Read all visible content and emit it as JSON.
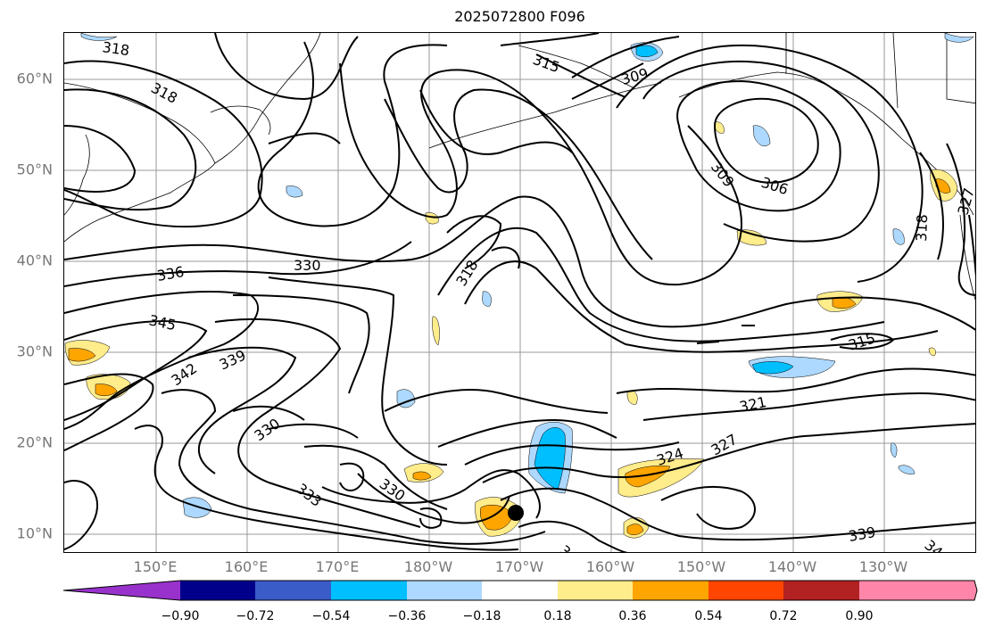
{
  "title": "2025072800 F096",
  "lat_labels": [
    "60°N",
    "50°N",
    "40°N",
    "30°N",
    "20°N",
    "10°N"
  ],
  "lon_labels": [
    "150°E",
    "160°E",
    "170°E",
    "180°W",
    "170°W",
    "160°W",
    "150°W",
    "140°W",
    "130°W"
  ],
  "contour_labels": [
    "318",
    "318",
    "315",
    "309",
    "309",
    "306",
    "318",
    "327",
    "336",
    "330",
    "318",
    "345",
    "342",
    "339",
    "315",
    "321",
    "330",
    "324",
    "327",
    "333",
    "330",
    "339",
    "3",
    "34"
  ],
  "colorbar": {
    "ticks": [
      "−0.90",
      "−0.72",
      "−0.54",
      "−0.36",
      "−0.18",
      "0.18",
      "0.36",
      "0.54",
      "0.72",
      "0.90"
    ],
    "colors": [
      "#9932cc",
      "#00008b",
      "#3a5cc8",
      "#00bfff",
      "#add8ff",
      "#ffffff",
      "#ffec8b",
      "#ffa500",
      "#ff4500",
      "#b22222",
      "#ff86a8"
    ]
  },
  "marker": "storm-center-dot"
}
